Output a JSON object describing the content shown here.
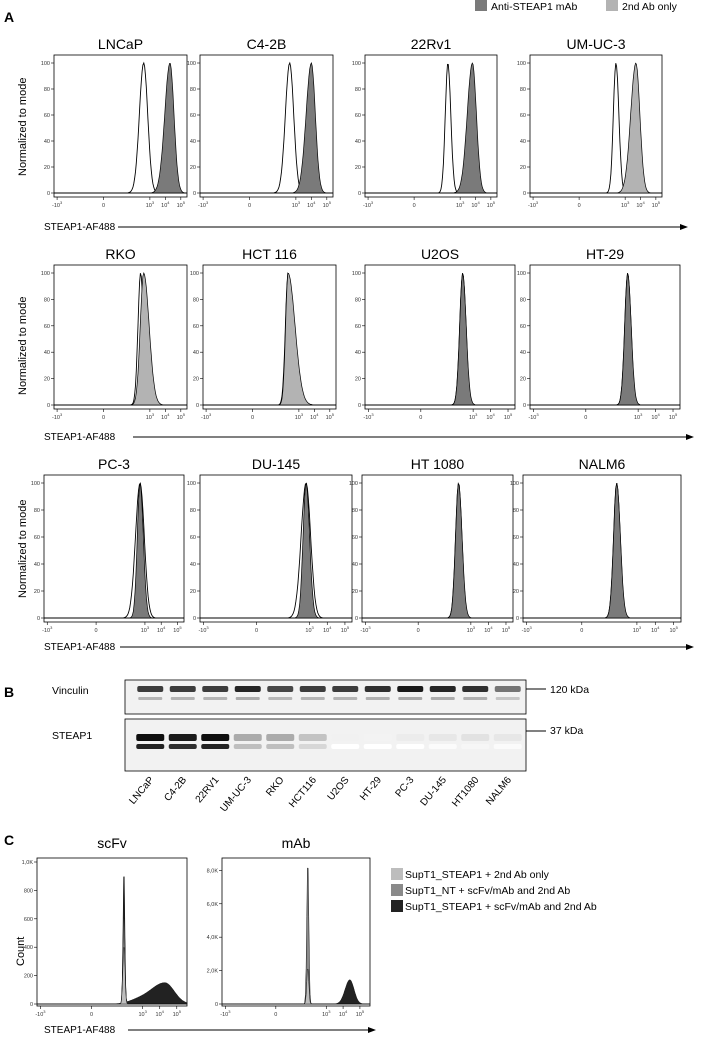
{
  "figure": {
    "panel_a": "A",
    "panel_b": "B",
    "panel_c": "C"
  },
  "legend_a": {
    "mab": "Anti-STEAP1 mAb",
    "second": "2nd Ab only",
    "mab_color": "#7a7a7a",
    "second_color": "#b3b3b3"
  },
  "axes": {
    "ylabel_normalized": "Normalized to mode",
    "xlabel": "STEAP1-AF488",
    "ylabel_count": "Count",
    "y_ticks_pct": [
      "100",
      "80",
      "60",
      "40",
      "20",
      "0"
    ],
    "x_ticks": [
      "-10",
      "0",
      "10",
      "10",
      "10"
    ],
    "x_tick_exps": [
      "3",
      "",
      "3",
      "4",
      "5"
    ]
  },
  "chart_data": [
    {
      "type": "area",
      "title": "LNCaP",
      "ylabel": "Normalized to mode",
      "xlabel": "STEAP1-AF488",
      "ylim": [
        0,
        100
      ],
      "series": [
        {
          "name": "2nd Ab only",
          "peak_log10": 2.6,
          "filled": false
        },
        {
          "name": "Anti-STEAP1 mAb",
          "peak_log10": 4.3,
          "filled": true
        }
      ]
    },
    {
      "type": "area",
      "title": "C4-2B",
      "ylabel": "Normalized to mode",
      "xlabel": "STEAP1-AF488",
      "ylim": [
        0,
        100
      ],
      "series": [
        {
          "name": "2nd Ab only",
          "peak_log10": 2.6,
          "filled": false
        },
        {
          "name": "Anti-STEAP1 mAb",
          "peak_log10": 4.0,
          "filled": true
        }
      ]
    },
    {
      "type": "area",
      "title": "22Rv1",
      "ylabel": "Normalized to mode",
      "xlabel": "STEAP1-AF488",
      "ylim": [
        0,
        100
      ],
      "series": [
        {
          "name": "2nd Ab only",
          "peak_log10": 2.2,
          "filled": false
        },
        {
          "name": "Anti-STEAP1 mAb",
          "peak_log10": 3.8,
          "filled": true
        }
      ]
    },
    {
      "type": "area",
      "title": "UM-UC-3",
      "ylabel": "Normalized to mode",
      "xlabel": "STEAP1-AF488",
      "ylim": [
        0,
        100
      ],
      "series": [
        {
          "name": "2nd Ab only",
          "peak_log10": 2.4,
          "filled": false
        },
        {
          "name": "Anti-STEAP1 mAb",
          "peak_log10": 3.7,
          "filled": true
        }
      ]
    },
    {
      "type": "area",
      "title": "RKO",
      "ylabel": "Normalized to mode",
      "xlabel": "STEAP1-AF488",
      "ylim": [
        0,
        100
      ],
      "series": [
        {
          "name": "2nd Ab only",
          "peak_log10": 2.4,
          "filled": false
        },
        {
          "name": "Anti-STEAP1 mAb",
          "peak_log10": 2.6,
          "filled": true
        }
      ]
    },
    {
      "type": "area",
      "title": "HCT 116",
      "ylabel": "Normalized to mode",
      "xlabel": "STEAP1-AF488",
      "ylim": [
        0,
        100
      ],
      "series": [
        {
          "name": "2nd Ab only",
          "peak_log10": 2.3,
          "filled": false
        },
        {
          "name": "Anti-STEAP1 mAb",
          "peak_log10": 2.3,
          "filled": true
        }
      ]
    },
    {
      "type": "area",
      "title": "U2OS",
      "ylabel": "Normalized to mode",
      "xlabel": "STEAP1-AF488",
      "ylim": [
        0,
        100
      ],
      "series": [
        {
          "name": "2nd Ab only",
          "peak_log10": 2.4,
          "filled": false
        },
        {
          "name": "Anti-STEAP1 mAb",
          "peak_log10": 2.4,
          "filled": true
        }
      ]
    },
    {
      "type": "area",
      "title": "HT-29",
      "ylabel": "Normalized to mode",
      "xlabel": "STEAP1-AF488",
      "ylim": [
        0,
        100
      ],
      "series": [
        {
          "name": "2nd Ab only",
          "peak_log10": 2.4,
          "filled": false
        },
        {
          "name": "Anti-STEAP1 mAb",
          "peak_log10": 2.4,
          "filled": true
        }
      ]
    },
    {
      "type": "area",
      "title": "PC-3",
      "ylabel": "Normalized to mode",
      "xlabel": "STEAP1-AF488",
      "ylim": [
        0,
        100
      ],
      "series": [
        {
          "name": "2nd Ab only",
          "peak_log10": 2.7,
          "filled": false
        },
        {
          "name": "Anti-STEAP1 mAb",
          "peak_log10": 2.7,
          "filled": true
        }
      ]
    },
    {
      "type": "area",
      "title": "DU-145",
      "ylabel": "Normalized to mode",
      "xlabel": "STEAP1-AF488",
      "ylim": [
        0,
        100
      ],
      "series": [
        {
          "name": "2nd Ab only",
          "peak_log10": 2.8,
          "filled": false
        },
        {
          "name": "Anti-STEAP1 mAb",
          "peak_log10": 2.8,
          "filled": true
        }
      ]
    },
    {
      "type": "area",
      "title": "HT 1080",
      "ylabel": "Normalized to mode",
      "xlabel": "STEAP1-AF488",
      "ylim": [
        0,
        100
      ],
      "series": [
        {
          "name": "2nd Ab only",
          "peak_log10": 2.3,
          "filled": false
        },
        {
          "name": "Anti-STEAP1 mAb",
          "peak_log10": 2.3,
          "filled": true
        }
      ]
    },
    {
      "type": "area",
      "title": "NALM6",
      "ylabel": "Normalized to mode",
      "xlabel": "STEAP1-AF488",
      "ylim": [
        0,
        100
      ],
      "series": [
        {
          "name": "2nd Ab only",
          "peak_log10": 1.9,
          "filled": false
        },
        {
          "name": "Anti-STEAP1 mAb",
          "peak_log10": 1.9,
          "filled": true
        }
      ]
    }
  ],
  "blot": {
    "vinculin_label": "Vinculin",
    "steap1_label": "STEAP1",
    "marker_120": "120 kDa",
    "marker_37": "37 kDa",
    "lanes": [
      "LNCaP",
      "C4-2B",
      "22RV1",
      "UM-UC-3",
      "RKO",
      "HCT116",
      "U2OS",
      "HT-29",
      "PC-3",
      "DU-145",
      "HT1080",
      "NALM6"
    ],
    "vinculin_intensity": [
      0.85,
      0.85,
      0.85,
      0.95,
      0.8,
      0.85,
      0.85,
      0.9,
      1.0,
      0.95,
      0.9,
      0.6
    ],
    "steap1_intensity": [
      1.0,
      0.95,
      1.0,
      0.35,
      0.35,
      0.25,
      0.06,
      0.05,
      0.08,
      0.1,
      0.12,
      0.1
    ]
  },
  "panel_c": {
    "charts": [
      {
        "type": "area",
        "title": "scFv",
        "ylabel": "Count",
        "xlabel": "STEAP1-AF488",
        "y_ticks": [
          "1,0K",
          "800",
          "600",
          "400",
          "200",
          "0"
        ],
        "ylim": [
          0,
          1000
        ],
        "series": [
          {
            "name": "SupT1_STEAP1 + 2nd Ab only",
            "peak_log10": 1.9,
            "peak_count": 420
          },
          {
            "name": "SupT1_NT + scFv/mAb and 2nd Ab",
            "peak_log10": 1.9,
            "peak_count": 640
          },
          {
            "name": "SupT1_STEAP1 + scFv/mAb and 2nd Ab",
            "peak_log10": 4.3,
            "peak_count": 150,
            "low_peak_count": 960
          }
        ]
      },
      {
        "type": "area",
        "title": "mAb",
        "ylabel": "Count",
        "xlabel": "STEAP1-AF488",
        "y_ticks": [
          "8,0K",
          "6,0K",
          "4,0K",
          "2,0K",
          "0"
        ],
        "ylim": [
          0,
          8500
        ],
        "series": [
          {
            "name": "SupT1_STEAP1 + 2nd Ab only",
            "peak_log10": 1.9,
            "peak_count": 2200
          },
          {
            "name": "SupT1_NT + scFv/mAb and 2nd Ab",
            "peak_log10": 1.9,
            "peak_count": 8600
          },
          {
            "name": "SupT1_STEAP1 + scFv/mAb and 2nd Ab",
            "peak_log10": 4.4,
            "peak_count": 1450
          }
        ]
      }
    ],
    "legend": [
      {
        "label": "SupT1_STEAP1 + 2nd Ab only",
        "color": "#bdbdbd"
      },
      {
        "label": "SupT1_NT + scFv/mAb and 2nd Ab",
        "color": "#8a8a8a"
      },
      {
        "label": "SupT1_STEAP1 + scFv/mAb and 2nd Ab",
        "color": "#222222"
      }
    ]
  }
}
